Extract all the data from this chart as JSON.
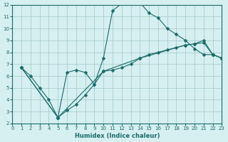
{
  "background_color": "#d6eff0",
  "grid_color": "#a0c8c8",
  "line_color": "#1a6b6b",
  "xlabel": "Humidex (Indice chaleur)",
  "xlim": [
    0,
    23
  ],
  "ylim": [
    2,
    12
  ],
  "xticks": [
    0,
    1,
    2,
    3,
    4,
    5,
    6,
    7,
    8,
    9,
    10,
    11,
    12,
    13,
    14,
    15,
    16,
    17,
    18,
    19,
    20,
    21,
    22,
    23
  ],
  "yticks": [
    2,
    3,
    4,
    5,
    6,
    7,
    8,
    9,
    10,
    11,
    12
  ],
  "line1_x": [
    1,
    2,
    3,
    4,
    5,
    6,
    7,
    8,
    9,
    10,
    11,
    12,
    13,
    14,
    15,
    16,
    17,
    18,
    19,
    20,
    21,
    22,
    23
  ],
  "line1_y": [
    6.7,
    6.0,
    5.0,
    4.0,
    2.5,
    6.3,
    6.5,
    6.3,
    5.3,
    7.5,
    11.5,
    12.1,
    12.2,
    12.2,
    11.3,
    10.9,
    10.0,
    9.5,
    9.0,
    8.3,
    7.8,
    7.8,
    7.5
  ],
  "line2_x": [
    1,
    5,
    6,
    7,
    8,
    9,
    10,
    11,
    12,
    13,
    14,
    15,
    16,
    17,
    18,
    19,
    20,
    21,
    22,
    23
  ],
  "line2_y": [
    6.7,
    2.5,
    3.1,
    3.6,
    4.4,
    5.3,
    6.4,
    6.5,
    6.7,
    7.0,
    7.5,
    7.8,
    8.0,
    8.2,
    8.4,
    8.6,
    8.7,
    8.8,
    7.8,
    7.5
  ],
  "line3_x": [
    1,
    5,
    10,
    14,
    19,
    20,
    21,
    22,
    23
  ],
  "line3_y": [
    6.7,
    2.5,
    6.4,
    7.5,
    8.6,
    8.7,
    9.0,
    7.8,
    7.5
  ]
}
